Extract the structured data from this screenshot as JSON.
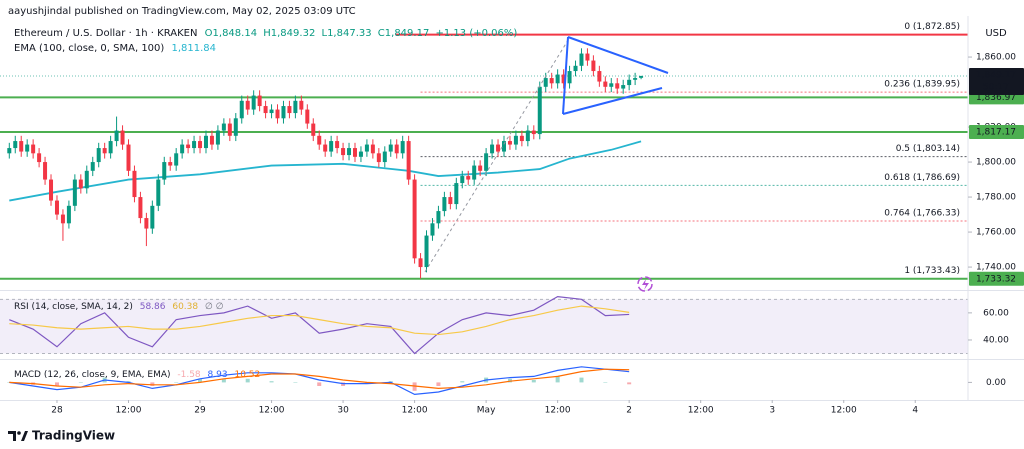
{
  "publisher": "aayushjindal published on TradingView.com, May 02, 2025 03:09 UTC",
  "brand": "TradingView",
  "chart_data": [
    {
      "type": "candlestick",
      "title": "Ethereum / U.S. Dollar · 1h · KRAKEN",
      "ohlc_labels": [
        "O1,848.14",
        "H1,849.32",
        "L1,847.33",
        "C1,849.17",
        "+1.13 (+0.06%)"
      ],
      "currency": "USD",
      "countdown": "50:17",
      "up_color": "#089981",
      "down_color": "#f23645",
      "x": [
        -8,
        -7,
        -6,
        -5,
        -4,
        -3,
        -2,
        -1,
        0,
        1,
        2,
        3,
        4,
        5,
        6,
        7,
        8,
        9,
        10,
        11,
        12,
        13,
        14,
        15,
        16,
        17,
        18,
        19,
        20,
        21,
        22,
        23,
        24,
        25,
        26,
        27,
        28,
        29,
        30,
        31,
        32,
        33,
        34,
        35,
        36,
        37,
        38,
        39,
        40,
        41,
        42,
        43,
        44,
        45,
        46,
        47,
        48,
        49,
        50,
        51,
        52,
        53,
        54,
        55,
        56,
        57,
        58,
        59,
        60,
        61,
        62,
        63,
        64,
        65,
        66,
        67,
        68,
        69,
        70,
        71,
        72,
        73,
        74,
        75,
        76,
        77,
        78,
        79,
        80,
        81,
        82,
        83,
        84,
        85,
        86,
        87,
        88,
        89,
        90,
        91,
        92,
        93,
        94,
        95,
        96,
        97,
        98
      ],
      "open": [
        1805,
        1808,
        1812,
        1806,
        1810,
        1805,
        1800,
        1790,
        1778,
        1770,
        1765,
        1775,
        1790,
        1785,
        1795,
        1800,
        1808,
        1805,
        1812,
        1818,
        1810,
        1795,
        1780,
        1768,
        1762,
        1775,
        1790,
        1800,
        1798,
        1805,
        1810,
        1808,
        1812,
        1808,
        1815,
        1810,
        1818,
        1822,
        1815,
        1825,
        1835,
        1830,
        1838,
        1832,
        1828,
        1830,
        1825,
        1832,
        1828,
        1835,
        1830,
        1822,
        1815,
        1810,
        1806,
        1812,
        1808,
        1804,
        1808,
        1803,
        1806,
        1810,
        1805,
        1800,
        1806,
        1810,
        1805,
        1812,
        1790,
        1745,
        1740,
        1758,
        1765,
        1772,
        1780,
        1776,
        1788,
        1792,
        1790,
        1798,
        1795,
        1805,
        1810,
        1806,
        1812,
        1810,
        1815,
        1812,
        1818,
        1816,
        1843,
        1848,
        1845,
        1850,
        1845,
        1852,
        1855,
        1862,
        1858,
        1852,
        1846,
        1843,
        1845,
        1842,
        1844,
        1847,
        1848.14
      ],
      "high": [
        1811,
        1815,
        1815,
        1813,
        1813,
        1808,
        1803,
        1793,
        1781,
        1773,
        1778,
        1793,
        1793,
        1798,
        1803,
        1811,
        1811,
        1815,
        1826,
        1821,
        1813,
        1798,
        1783,
        1771,
        1778,
        1793,
        1803,
        1803,
        1808,
        1813,
        1813,
        1815,
        1815,
        1818,
        1818,
        1821,
        1825,
        1825,
        1828,
        1838,
        1838,
        1841,
        1841,
        1835,
        1833,
        1833,
        1835,
        1835,
        1838,
        1838,
        1833,
        1825,
        1818,
        1813,
        1815,
        1815,
        1811,
        1811,
        1811,
        1809,
        1813,
        1813,
        1808,
        1809,
        1813,
        1813,
        1815,
        1815,
        1793,
        1748,
        1761,
        1768,
        1775,
        1783,
        1783,
        1791,
        1795,
        1795,
        1801,
        1801,
        1808,
        1813,
        1813,
        1815,
        1815,
        1818,
        1818,
        1821,
        1821,
        1846,
        1851,
        1851,
        1853,
        1853,
        1855,
        1858,
        1865,
        1865,
        1861,
        1855,
        1849,
        1848,
        1848,
        1847,
        1850,
        1851,
        1849.32
      ],
      "low": [
        1802,
        1805,
        1803,
        1803,
        1802,
        1797,
        1787,
        1775,
        1767,
        1755,
        1762,
        1772,
        1782,
        1782,
        1792,
        1797,
        1802,
        1802,
        1809,
        1807,
        1792,
        1777,
        1765,
        1752,
        1759,
        1772,
        1787,
        1795,
        1795,
        1802,
        1805,
        1805,
        1805,
        1805,
        1807,
        1807,
        1815,
        1812,
        1812,
        1822,
        1827,
        1827,
        1829,
        1825,
        1825,
        1822,
        1822,
        1825,
        1825,
        1827,
        1819,
        1812,
        1807,
        1803,
        1803,
        1805,
        1801,
        1801,
        1800,
        1800,
        1803,
        1802,
        1797,
        1797,
        1803,
        1802,
        1802,
        1787,
        1742,
        1733.43,
        1737,
        1755,
        1762,
        1769,
        1773,
        1773,
        1785,
        1787,
        1787,
        1792,
        1792,
        1802,
        1803,
        1803,
        1807,
        1807,
        1809,
        1809,
        1813,
        1813,
        1840,
        1842,
        1842,
        1842,
        1842,
        1849,
        1852,
        1855,
        1849,
        1843,
        1840,
        1840,
        1839,
        1839,
        1841,
        1844,
        1847.33
      ],
      "close": [
        1808,
        1812,
        1806,
        1810,
        1805,
        1800,
        1790,
        1778,
        1770,
        1765,
        1775,
        1790,
        1785,
        1795,
        1800,
        1808,
        1805,
        1812,
        1818,
        1810,
        1795,
        1780,
        1768,
        1762,
        1775,
        1790,
        1800,
        1798,
        1805,
        1810,
        1808,
        1812,
        1808,
        1815,
        1810,
        1818,
        1822,
        1815,
        1825,
        1835,
        1830,
        1838,
        1832,
        1828,
        1830,
        1825,
        1832,
        1828,
        1835,
        1830,
        1822,
        1815,
        1810,
        1806,
        1812,
        1808,
        1804,
        1808,
        1803,
        1806,
        1810,
        1805,
        1800,
        1806,
        1810,
        1805,
        1812,
        1790,
        1745,
        1740,
        1758,
        1765,
        1772,
        1780,
        1776,
        1788,
        1792,
        1790,
        1798,
        1795,
        1805,
        1810,
        1806,
        1812,
        1810,
        1815,
        1812,
        1818,
        1816,
        1843,
        1848,
        1845,
        1850,
        1845,
        1852,
        1855,
        1862,
        1858,
        1852,
        1846,
        1843,
        1845,
        1842,
        1844,
        1847,
        1848,
        1849.17
      ],
      "last_price": {
        "value": 1849.17,
        "label": "1,849.17"
      },
      "ema": {
        "name": "EMA (100, close, 0, SMA, 100)",
        "value_label": "1,811.84",
        "color": "#26b5cf",
        "x": [
          -8,
          0,
          12,
          24,
          36,
          48,
          59,
          64,
          74,
          81,
          86,
          93,
          98
        ],
        "values": [
          1778,
          1783,
          1790,
          1793,
          1798,
          1799,
          1795,
          1792,
          1794,
          1796,
          1802,
          1807,
          1811.84
        ]
      },
      "levels": [
        {
          "value": 1872.85,
          "color": "#f23645"
        },
        {
          "value": 1836.97,
          "label": "1,836.97",
          "color": "#4caf50"
        },
        {
          "value": 1817.17,
          "label": "1,817.17",
          "color": "#4caf50"
        },
        {
          "value": 1733.32,
          "label": "1,733.32",
          "color": "#4caf50"
        }
      ],
      "fib": [
        {
          "value": 1872.85,
          "label": "0 (1,872.85)",
          "color": "#9598a1"
        },
        {
          "value": 1839.95,
          "label": "0.236 (1,839.95)",
          "color": "#f23645"
        },
        {
          "value": 1803.14,
          "label": "0.5 (1,803.14)",
          "color": "#131722"
        },
        {
          "value": 1786.69,
          "label": "0.618 (1,786.69)",
          "color": "#089981"
        },
        {
          "value": 1766.33,
          "label": "0.764 (1,766.33)",
          "color": "#f23645"
        },
        {
          "value": 1733.43,
          "label": "1 (1,733.43)",
          "color": "#5b6b8c"
        }
      ],
      "xlim": [
        -9.56,
        152.85
      ],
      "xticks": [
        {
          "value": 0,
          "label": "28"
        },
        {
          "value": 12,
          "label": "12:00"
        },
        {
          "value": 24,
          "label": "29"
        },
        {
          "value": 36,
          "label": "12:00"
        },
        {
          "value": 48,
          "label": "30"
        },
        {
          "value": 60,
          "label": "12:00"
        },
        {
          "value": 72,
          "label": "May"
        },
        {
          "value": 84,
          "label": "12:00"
        },
        {
          "value": 96,
          "label": "2"
        },
        {
          "value": 108,
          "label": "12:00"
        },
        {
          "value": 120,
          "label": "3"
        },
        {
          "value": 132,
          "label": "12:00"
        },
        {
          "value": 144,
          "label": "4"
        }
      ],
      "ylim": [
        1726.9,
        1876.6
      ],
      "yticks": [
        {
          "value": 1740,
          "label": "1,740.00"
        },
        {
          "value": 1760,
          "label": "1,760.00"
        },
        {
          "value": 1780,
          "label": "1,780.00"
        },
        {
          "value": 1800,
          "label": "1,800.00"
        },
        {
          "value": 1820,
          "label": "1,820.00"
        },
        {
          "value": 1860,
          "label": "1,860.00"
        }
      ]
    },
    {
      "type": "line",
      "title": "RSI (14, close, SMA, 14, 2)",
      "extra_legend": "∅ ∅",
      "band": [
        30,
        70
      ],
      "band_color": "#7e57c2",
      "xlim": [
        -9.56,
        152.85
      ],
      "x": [
        -8,
        -4,
        0,
        4,
        8,
        12,
        16,
        20,
        24,
        28,
        32,
        36,
        40,
        44,
        48,
        52,
        56,
        60,
        64,
        68,
        72,
        76,
        80,
        84,
        88,
        92,
        96
      ],
      "series": [
        {
          "color": "#7e57c2",
          "legend_label": "58.86",
          "values": [
            55,
            48,
            35,
            52,
            60,
            42,
            35,
            55,
            58,
            60,
            65,
            56,
            60,
            45,
            48,
            52,
            50,
            30,
            45,
            55,
            60,
            58,
            62,
            72,
            70,
            58,
            58.86
          ]
        },
        {
          "color": "#f7c948",
          "legend_label": "60.38",
          "values": [
            52,
            51,
            49,
            48,
            49,
            50,
            48,
            48,
            50,
            53,
            56,
            58,
            58,
            55,
            52,
            50,
            49,
            45,
            44,
            46,
            50,
            55,
            58,
            62,
            65,
            63,
            60.38
          ]
        }
      ],
      "ylim": [
        26.7,
        75.4
      ],
      "yticks": [
        {
          "value": 40,
          "label": "40.00"
        },
        {
          "value": 60,
          "label": "60.00"
        }
      ]
    },
    {
      "type": "combo",
      "title": "MACD (12, 26, close, 9, EMA, EMA)",
      "xlim": [
        -9.56,
        152.85
      ],
      "x": [
        -8,
        -4,
        0,
        4,
        8,
        12,
        16,
        20,
        24,
        28,
        32,
        36,
        40,
        44,
        48,
        52,
        56,
        60,
        64,
        68,
        72,
        76,
        80,
        84,
        88,
        92,
        96
      ],
      "histogram": {
        "legend_label": "-1.58",
        "up_color": "#9fd8cf",
        "down_color": "#f7a9ae",
        "values": [
          0,
          -2,
          -3,
          0,
          4,
          1,
          -3,
          0,
          3,
          3,
          3,
          1,
          0,
          -3,
          -3,
          -1,
          1,
          -7,
          -3,
          1,
          4,
          3,
          2,
          5,
          4,
          0,
          -1.58
        ]
      },
      "series": [
        {
          "color": "#2962ff",
          "legend_label": "8.93",
          "values": [
            0,
            -3,
            -6,
            -4,
            2,
            0,
            -5,
            -2,
            3,
            6,
            8,
            8,
            7,
            2,
            -1,
            -1,
            0,
            -10,
            -8,
            -3,
            2,
            4,
            5,
            10,
            13,
            11,
            8.93
          ]
        },
        {
          "color": "#ff6d00",
          "legend_label": "10.52",
          "values": [
            0,
            -1,
            -3,
            -4,
            -2,
            -1,
            -2,
            -2,
            0,
            3,
            5,
            7,
            7,
            5,
            2,
            0,
            -1,
            -3,
            -5,
            -4,
            -2,
            1,
            3,
            5,
            9,
            11,
            10.52
          ]
        }
      ],
      "ylim": [
        -13,
        17
      ],
      "yticks": [
        {
          "value": 0,
          "label": "0.00"
        }
      ]
    }
  ]
}
